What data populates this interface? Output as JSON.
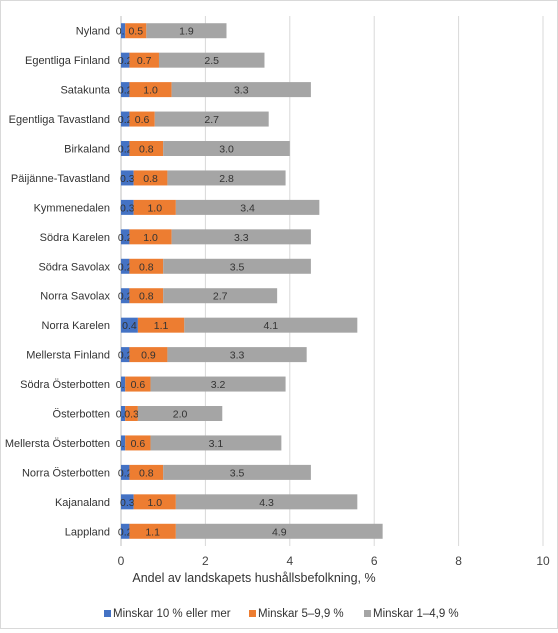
{
  "chart_data": {
    "type": "bar",
    "orientation": "horizontal",
    "stacked": true,
    "categories": [
      "Nyland",
      "Egentliga Finland",
      "Satakunta",
      "Egentliga Tavastland",
      "Birkaland",
      "Päijänne-Tavastland",
      "Kymmenedalen",
      "Södra Karelen",
      "Södra Savolax",
      "Norra Savolax",
      "Norra Karelen",
      "Mellersta Finland",
      "Södra Österbotten",
      "Österbotten",
      "Mellersta Österbotten",
      "Norra Österbotten",
      "Kajanaland",
      "Lappland"
    ],
    "series": [
      {
        "name": "Minskar 10 % eller mer",
        "color": "#4472c4",
        "values": [
          0.1,
          0.2,
          0.2,
          0.2,
          0.2,
          0.3,
          0.3,
          0.2,
          0.2,
          0.2,
          0.4,
          0.2,
          0.1,
          0.1,
          0.1,
          0.2,
          0.3,
          0.2
        ],
        "labels": [
          "0.1",
          "0.2",
          "0.2",
          "0.2",
          "0.2",
          "0.3",
          "0.3",
          "0.2",
          "0.2",
          "0.2",
          "0.4",
          "0.2",
          "0.1",
          "0.1",
          "0.1",
          "0.2",
          "0.3",
          "0.2"
        ]
      },
      {
        "name": "Minskar 5–9,9 %",
        "color": "#ed7d31",
        "values": [
          0.5,
          0.7,
          1.0,
          0.6,
          0.8,
          0.8,
          1.0,
          1.0,
          0.8,
          0.8,
          1.1,
          0.9,
          0.6,
          0.3,
          0.6,
          0.8,
          1.0,
          1.1
        ],
        "labels": [
          "0.5",
          "0.7",
          "1.0",
          "0.6",
          "0.8",
          "0.8",
          "1.0",
          "1.0",
          "0.8",
          "0.8",
          "1.1",
          "0.9",
          "0.6",
          "0.3",
          "0.6",
          "0.8",
          "1.0",
          "1.1"
        ]
      },
      {
        "name": "Minskar 1–4,9 %",
        "color": "#a5a5a5",
        "values": [
          1.9,
          2.5,
          3.3,
          2.7,
          3.0,
          2.8,
          3.4,
          3.3,
          3.5,
          2.7,
          4.1,
          3.3,
          3.2,
          2.0,
          3.1,
          3.5,
          4.3,
          4.9
        ],
        "labels": [
          "1.9",
          "2.5",
          "3.3",
          "2.7",
          "3.0",
          "2.8",
          "3.4",
          "3.3",
          "3.5",
          "2.7",
          "4.1",
          "3.3",
          "3.2",
          "2.0",
          "3.1",
          "3.5",
          "4.3",
          "4.9"
        ]
      }
    ],
    "xlabel": "Andel av landskapets hushållsbefolkning, %",
    "xlim": [
      0,
      10
    ],
    "xticks": [
      "0",
      "2",
      "4",
      "6",
      "8",
      "10"
    ],
    "grid": true,
    "legend": "bottom"
  }
}
